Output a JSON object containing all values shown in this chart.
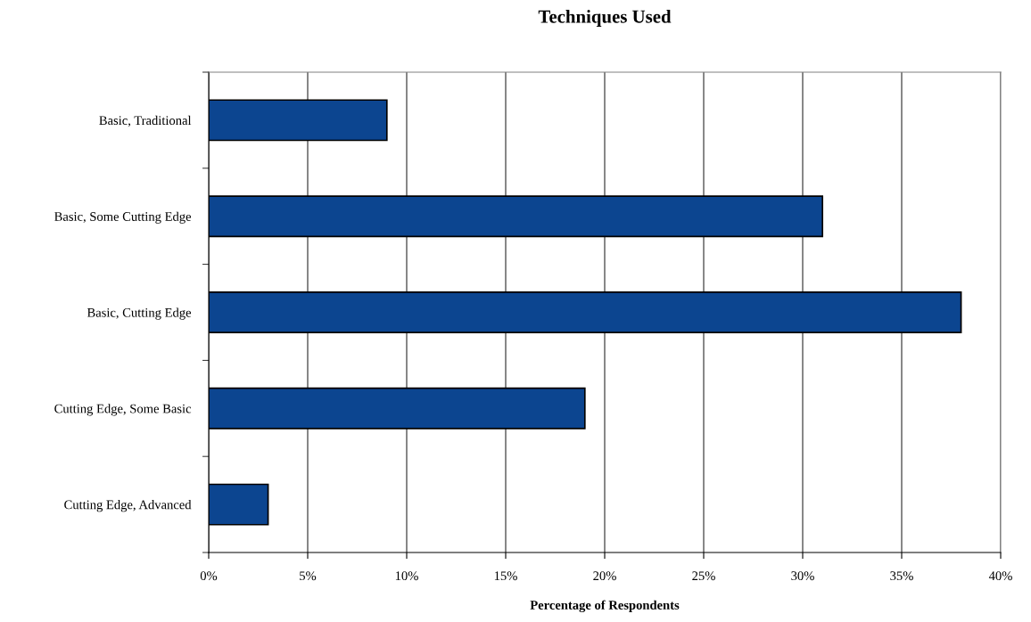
{
  "chart_data": {
    "type": "bar",
    "orientation": "horizontal",
    "title": "Techniques Used",
    "xlabel": "Percentage of Respondents",
    "categories": [
      "Basic, Traditional",
      "Basic, Some Cutting Edge",
      "Basic, Cutting Edge",
      "Cutting Edge, Some Basic",
      "Cutting Edge, Advanced"
    ],
    "values": [
      9,
      31,
      38,
      19,
      3
    ],
    "color": "#0c4590",
    "xlim": [
      0,
      40
    ],
    "xticks": [
      {
        "value": 0,
        "label": "0%"
      },
      {
        "value": 5,
        "label": "5%"
      },
      {
        "value": 10,
        "label": "10%"
      },
      {
        "value": 15,
        "label": "15%"
      },
      {
        "value": 20,
        "label": "20%"
      },
      {
        "value": 25,
        "label": "25%"
      },
      {
        "value": 30,
        "label": "30%"
      },
      {
        "value": 35,
        "label": "35%"
      },
      {
        "value": 40,
        "label": "40%"
      }
    ],
    "grid": "x"
  }
}
